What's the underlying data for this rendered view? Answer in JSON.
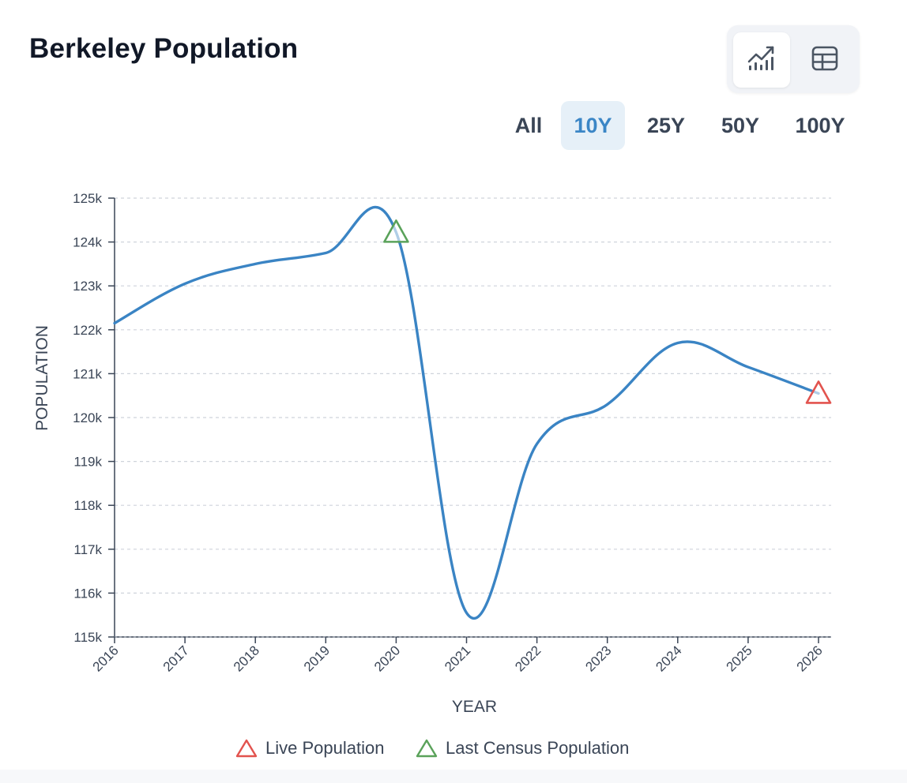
{
  "header": {
    "title": "Berkeley Population"
  },
  "view_toggle": {
    "options": [
      {
        "name": "chart-view",
        "icon": "line-chart-icon",
        "active": true
      },
      {
        "name": "table-view",
        "icon": "table-grid-icon",
        "active": false
      }
    ]
  },
  "range_tabs": {
    "items": [
      {
        "label": "All",
        "active": false
      },
      {
        "label": "10Y",
        "active": true
      },
      {
        "label": "25Y",
        "active": false
      },
      {
        "label": "50Y",
        "active": false
      },
      {
        "label": "100Y",
        "active": false
      }
    ]
  },
  "colors": {
    "line": "#3a84c4",
    "live": "#e2534e",
    "census": "#5aa25a",
    "grid": "#cfd4db",
    "axis": "#3a4556",
    "accent": "#3b86c6",
    "accent_bg": "#e6f0f8"
  },
  "legend": {
    "live_label": "Live Population",
    "census_label": "Last Census Population"
  },
  "chart_data": {
    "type": "line",
    "title": "Berkeley Population",
    "xlabel": "YEAR",
    "ylabel": "POPULATION",
    "x": [
      2016,
      2017,
      2018,
      2019,
      2020,
      2021,
      2022,
      2023,
      2024,
      2025,
      2026
    ],
    "ylim": [
      115000,
      125000
    ],
    "xlim": [
      2016,
      2026
    ],
    "yticks": [
      115000,
      116000,
      117000,
      118000,
      119000,
      120000,
      121000,
      122000,
      123000,
      124000,
      125000
    ],
    "ytick_labels": [
      "115k",
      "116k",
      "117k",
      "118k",
      "119k",
      "120k",
      "121k",
      "122k",
      "123k",
      "124k",
      "125k"
    ],
    "xtick_labels": [
      "2016",
      "2017",
      "2018",
      "2019",
      "2020",
      "2021",
      "2022",
      "2023",
      "2024",
      "2025",
      "2026"
    ],
    "grid": true,
    "series": [
      {
        "values": [
          122150,
          123050,
          123500,
          123750,
          124220,
          115550,
          119400,
          120300,
          121700,
          121150,
          120550
        ]
      }
    ],
    "markers": [
      {
        "type": "census",
        "x": 2020,
        "y": 124220,
        "label": "Last Census Population"
      },
      {
        "type": "live",
        "x": 2026,
        "y": 120550,
        "label": "Live Population"
      }
    ],
    "legend_position": "bottom"
  }
}
